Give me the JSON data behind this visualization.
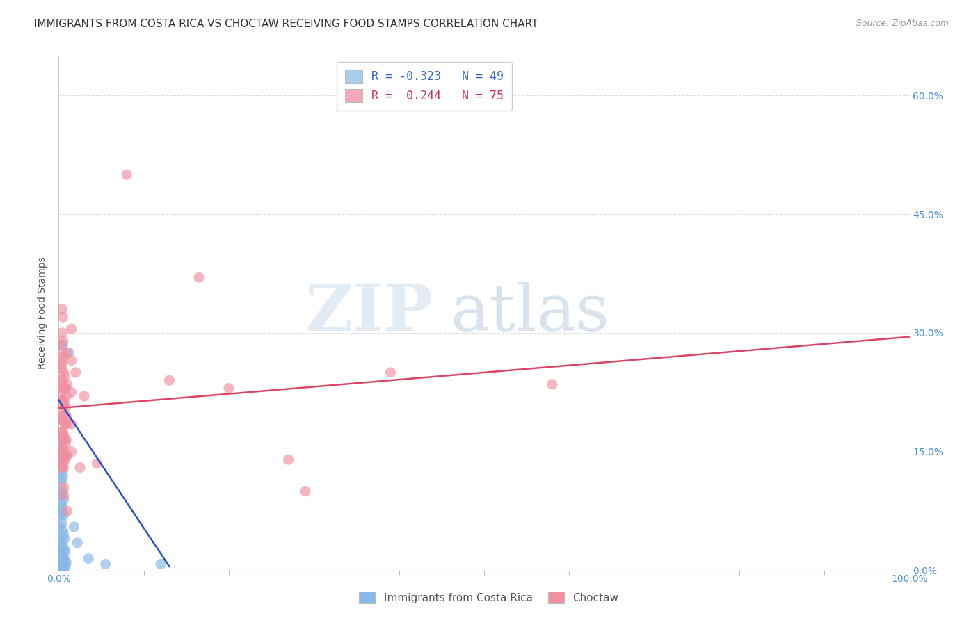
{
  "title": "IMMIGRANTS FROM COSTA RICA VS CHOCTAW RECEIVING FOOD STAMPS CORRELATION CHART",
  "source": "Source: ZipAtlas.com",
  "ylabel_label": "Receiving Food Stamps",
  "xlim": [
    0,
    100
  ],
  "ylim": [
    0,
    65
  ],
  "ytick_positions": [
    0,
    15,
    30,
    45,
    60
  ],
  "ytick_labels": [
    "0.0%",
    "15.0%",
    "30.0%",
    "45.0%",
    "60.0%"
  ],
  "xtick_major_positions": [
    0,
    100
  ],
  "xtick_major_labels": [
    "0.0%",
    "100.0%"
  ],
  "xtick_minor_positions": [
    10,
    20,
    30,
    40,
    50,
    60,
    70,
    80,
    90
  ],
  "legend_entries": [
    {
      "label_r": "R = ",
      "label_val": "-0.323",
      "label_n": "   N = ",
      "label_nval": "49",
      "color": "#aacfee"
    },
    {
      "label_r": "R =  ",
      "label_val": "0.244",
      "label_n": "   N = ",
      "label_nval": "75",
      "color": "#f4a8b8"
    }
  ],
  "blue_color": "#88b8e8",
  "pink_color": "#f090a0",
  "blue_line_color": "#2255bb",
  "pink_line_color": "#dd4466",
  "blue_scatter": [
    [
      0.2,
      0.8
    ],
    [
      0.2,
      1.5
    ],
    [
      0.2,
      2.5
    ],
    [
      0.2,
      4.0
    ],
    [
      0.2,
      5.5
    ],
    [
      0.3,
      7.0
    ],
    [
      0.3,
      8.5
    ],
    [
      0.3,
      9.5
    ],
    [
      0.3,
      11.0
    ],
    [
      0.3,
      12.5
    ],
    [
      0.3,
      14.0
    ],
    [
      0.3,
      15.5
    ],
    [
      0.4,
      0.3
    ],
    [
      0.4,
      1.0
    ],
    [
      0.4,
      2.0
    ],
    [
      0.4,
      3.5
    ],
    [
      0.4,
      6.0
    ],
    [
      0.4,
      8.0
    ],
    [
      0.4,
      9.5
    ],
    [
      0.4,
      11.5
    ],
    [
      0.4,
      13.0
    ],
    [
      0.4,
      14.5
    ],
    [
      0.4,
      16.5
    ],
    [
      0.5,
      0.5
    ],
    [
      0.5,
      1.5
    ],
    [
      0.5,
      3.0
    ],
    [
      0.5,
      5.0
    ],
    [
      0.5,
      7.5
    ],
    [
      0.5,
      10.0
    ],
    [
      0.5,
      12.0
    ],
    [
      0.5,
      14.0
    ],
    [
      0.6,
      0.3
    ],
    [
      0.6,
      1.0
    ],
    [
      0.6,
      2.5
    ],
    [
      0.6,
      4.5
    ],
    [
      0.6,
      7.0
    ],
    [
      0.6,
      9.0
    ],
    [
      0.7,
      1.5
    ],
    [
      0.7,
      4.0
    ],
    [
      0.8,
      0.5
    ],
    [
      0.8,
      2.5
    ],
    [
      0.9,
      1.0
    ],
    [
      1.2,
      27.5
    ],
    [
      1.8,
      5.5
    ],
    [
      2.2,
      3.5
    ],
    [
      5.5,
      0.8
    ],
    [
      0.5,
      28.5
    ],
    [
      3.5,
      1.5
    ],
    [
      12.0,
      0.8
    ]
  ],
  "pink_scatter": [
    [
      0.3,
      14.0
    ],
    [
      0.3,
      16.0
    ],
    [
      0.3,
      17.5
    ],
    [
      0.3,
      19.0
    ],
    [
      0.3,
      20.5
    ],
    [
      0.3,
      22.0
    ],
    [
      0.3,
      24.0
    ],
    [
      0.3,
      26.0
    ],
    [
      0.3,
      28.5
    ],
    [
      0.4,
      13.0
    ],
    [
      0.4,
      15.0
    ],
    [
      0.4,
      17.0
    ],
    [
      0.4,
      19.0
    ],
    [
      0.4,
      21.0
    ],
    [
      0.4,
      23.0
    ],
    [
      0.4,
      25.5
    ],
    [
      0.4,
      27.5
    ],
    [
      0.4,
      30.0
    ],
    [
      0.4,
      33.0
    ],
    [
      0.5,
      13.5
    ],
    [
      0.5,
      15.5
    ],
    [
      0.5,
      17.5
    ],
    [
      0.5,
      19.5
    ],
    [
      0.5,
      21.5
    ],
    [
      0.5,
      24.0
    ],
    [
      0.5,
      26.5
    ],
    [
      0.5,
      29.0
    ],
    [
      0.5,
      32.0
    ],
    [
      0.6,
      13.0
    ],
    [
      0.6,
      15.0
    ],
    [
      0.6,
      17.0
    ],
    [
      0.6,
      19.5
    ],
    [
      0.6,
      21.5
    ],
    [
      0.6,
      23.0
    ],
    [
      0.6,
      25.0
    ],
    [
      0.6,
      27.0
    ],
    [
      0.6,
      10.5
    ],
    [
      0.6,
      9.5
    ],
    [
      0.7,
      14.5
    ],
    [
      0.7,
      16.5
    ],
    [
      0.7,
      18.5
    ],
    [
      0.7,
      21.0
    ],
    [
      0.7,
      23.0
    ],
    [
      0.7,
      24.5
    ],
    [
      0.8,
      14.0
    ],
    [
      0.8,
      16.0
    ],
    [
      0.8,
      18.5
    ],
    [
      0.8,
      20.5
    ],
    [
      0.8,
      23.0
    ],
    [
      0.9,
      14.5
    ],
    [
      0.9,
      16.5
    ],
    [
      0.9,
      19.5
    ],
    [
      0.9,
      22.0
    ],
    [
      1.0,
      14.5
    ],
    [
      1.0,
      18.5
    ],
    [
      1.0,
      23.5
    ],
    [
      1.0,
      27.5
    ],
    [
      1.0,
      7.5
    ],
    [
      1.5,
      15.0
    ],
    [
      1.5,
      18.5
    ],
    [
      1.5,
      22.5
    ],
    [
      1.5,
      26.5
    ],
    [
      1.5,
      30.5
    ],
    [
      2.0,
      25.0
    ],
    [
      2.5,
      13.0
    ],
    [
      3.0,
      22.0
    ],
    [
      4.5,
      13.5
    ],
    [
      8.0,
      50.0
    ],
    [
      13.0,
      24.0
    ],
    [
      16.5,
      37.0
    ],
    [
      20.0,
      23.0
    ],
    [
      27.0,
      14.0
    ],
    [
      29.0,
      10.0
    ],
    [
      39.0,
      25.0
    ],
    [
      58.0,
      23.5
    ]
  ],
  "blue_line": {
    "x": [
      0.0,
      13.0
    ],
    "y": [
      21.5,
      0.5
    ]
  },
  "pink_line": {
    "x": [
      0.0,
      100.0
    ],
    "y": [
      20.5,
      29.5
    ]
  },
  "watermark_zip": "ZIP",
  "watermark_atlas": "atlas",
  "title_fontsize": 11,
  "axis_tick_fontsize": 10,
  "ylabel_fontsize": 10,
  "background_color": "#ffffff",
  "grid_color": "#dddddd"
}
